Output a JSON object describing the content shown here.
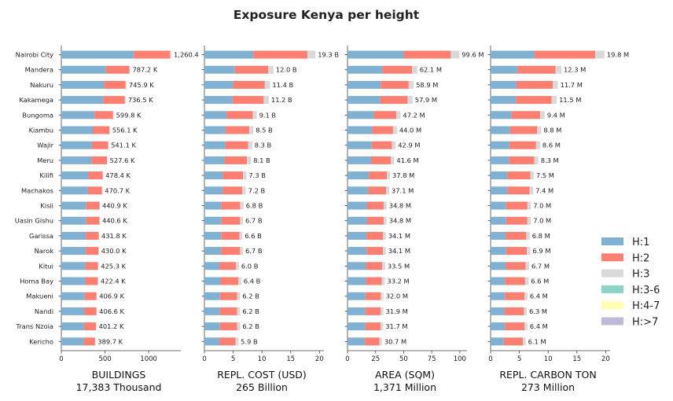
{
  "title": "Exposure Kenya per height",
  "colors": {
    "H:1": "#80b1d3",
    "H:2": "#fb8072",
    "H:3": "#d9d9d9",
    "H:3-6": "#8dd3c7",
    "H:4-7": "#ffffb3",
    "H:>7": "#bebada"
  },
  "chart_data": {
    "type": "bar",
    "orientation": "horizontal",
    "stacked": true,
    "categories": [
      "Nairobi City",
      "Mandera",
      "Nakuru",
      "Kakamega",
      "Bungoma",
      "Kiambu",
      "Wajir",
      "Meru",
      "Kilifi",
      "Machakos",
      "Kisii",
      "Uasin Gishu",
      "Garissa",
      "Narok",
      "Kitui",
      "Homa Bay",
      "Makueni",
      "Nandi",
      "Trans Nzoia",
      "Kericho"
    ],
    "legend": [
      "H:1",
      "H:2",
      "H:3",
      "H:3-6",
      "H:4-7",
      "H:>7"
    ],
    "legend_position": "right",
    "panels": [
      {
        "xlabel": "BUILDINGS",
        "xsub": "17,383 Thousand",
        "xlim": [
          0,
          1350
        ],
        "xticks": [
          0,
          500,
          1000
        ],
        "totals": [
          1260.4,
          787.2,
          745.9,
          736.5,
          599.8,
          556.1,
          541.1,
          527.6,
          478.4,
          470.7,
          440.9,
          440.6,
          431.8,
          430.0,
          425.3,
          422.4,
          406.9,
          406.6,
          401.2,
          389.7
        ],
        "labels": [
          "1,260.4",
          "787.2 K",
          "745.9 K",
          "736.5 K",
          "599.8 K",
          "556.1 K",
          "541.1 K",
          "527.6 K",
          "478.4 K",
          "470.7 K",
          "440.9 K",
          "440.6 K",
          "431.8 K",
          "430.0 K",
          "425.3 K",
          "422.4 K",
          "406.9 K",
          "406.6 K",
          "401.2 K",
          "389.7 K"
        ],
        "series": [
          {
            "name": "H:1",
            "values": [
              830,
              510,
              490,
              480,
              380,
              360,
              350,
              345,
              310,
              305,
              285,
              285,
              280,
              280,
              275,
              275,
              265,
              265,
              260,
              255
            ]
          },
          {
            "name": "H:2",
            "values": [
              415,
              268,
              246,
              247,
              212,
              190,
              185,
              178,
              164,
              161,
              152,
              152,
              148,
              146,
              146,
              143,
              138,
              138,
              137,
              131
            ]
          },
          {
            "name": "H:3",
            "values": [
              15,
              9,
              9,
              9,
              7,
              6,
              6,
              4,
              4,
              4,
              3,
              3,
              3,
              4,
              4,
              4,
              3,
              3,
              4,
              3
            ]
          }
        ]
      },
      {
        "xlabel": "REPL. COST (USD)",
        "xsub": "265 Billion",
        "xlim": [
          0,
          20.5
        ],
        "xticks": [
          0,
          5,
          10,
          15,
          20
        ],
        "totals": [
          19.3,
          12.0,
          11.4,
          11.2,
          9.1,
          8.5,
          8.3,
          8.1,
          7.3,
          7.2,
          6.8,
          6.7,
          6.6,
          6.7,
          6.0,
          6.4,
          6.2,
          6.2,
          6.2,
          5.9
        ],
        "labels": [
          "19.3 B",
          "12.0 B",
          "11.4 B",
          "11.2 B",
          "9.1 B",
          "8.5 B",
          "8.3 B",
          "8.1 B",
          "7.3 B",
          "7.2 B",
          "6.8 B",
          "6.7 B",
          "6.6 B",
          "6.7 B",
          "6.0 B",
          "6.4 B",
          "6.2 B",
          "6.2 B",
          "6.2 B",
          "5.9 B"
        ],
        "series": [
          {
            "name": "H:1",
            "values": [
              8.5,
              5.3,
              5.0,
              4.9,
              3.9,
              3.7,
              3.6,
              3.5,
              3.2,
              3.2,
              2.9,
              2.9,
              2.9,
              2.9,
              2.6,
              2.8,
              2.7,
              2.7,
              2.7,
              2.6
            ]
          },
          {
            "name": "H:2",
            "values": [
              9.4,
              5.8,
              5.5,
              5.4,
              4.5,
              4.1,
              4.0,
              3.9,
              3.5,
              3.4,
              3.3,
              3.3,
              3.2,
              3.3,
              2.9,
              3.1,
              3.0,
              3.0,
              3.0,
              2.8
            ]
          },
          {
            "name": "H:3",
            "values": [
              1.4,
              0.9,
              0.9,
              0.9,
              0.7,
              0.7,
              0.7,
              0.7,
              0.6,
              0.6,
              0.6,
              0.5,
              0.5,
              0.5,
              0.5,
              0.5,
              0.5,
              0.5,
              0.5,
              0.5
            ]
          }
        ]
      },
      {
        "xlabel": "AREA (SQM)",
        "xsub": "1,371 Million",
        "xlim": [
          0,
          105
        ],
        "xticks": [
          0,
          25,
          50,
          75,
          100
        ],
        "totals": [
          99.6,
          62.1,
          58.9,
          57.9,
          47.2,
          44.0,
          42.9,
          41.6,
          37.8,
          37.1,
          34.8,
          34.8,
          34.1,
          34.1,
          33.5,
          33.2,
          32.0,
          31.9,
          31.7,
          30.7
        ],
        "labels": [
          "99.6 M",
          "62.1 M",
          "58.9 M",
          "57.9 M",
          "47.2 M",
          "44.0 M",
          "42.9 M",
          "41.6 M",
          "37.8 M",
          "37.1 M",
          "34.8 M",
          "34.8 M",
          "34.1 M",
          "34.1 M",
          "33.5 M",
          "33.2 M",
          "32.0 M",
          "31.9 M",
          "31.7 M",
          "30.7 M"
        ],
        "series": [
          {
            "name": "H:1",
            "values": [
              50,
              31,
              29.5,
              29,
              23.5,
              22,
              21.5,
              21,
              19,
              18.5,
              17.5,
              17.5,
              17,
              17,
              16.5,
              16.5,
              16,
              16,
              16,
              15.5
            ]
          },
          {
            "name": "H:2",
            "values": [
              42,
              26.5,
              25,
              24.5,
              20,
              18.5,
              18,
              17.5,
              16,
              15.8,
              14.8,
              14.8,
              14.5,
              14.5,
              14.3,
              14.1,
              13.6,
              13.5,
              13.4,
              13
            ]
          },
          {
            "name": "H:3",
            "values": [
              7.6,
              4.6,
              4.4,
              4.4,
              3.7,
              3.5,
              3.4,
              3.1,
              2.8,
              2.8,
              2.5,
              2.5,
              2.6,
              2.6,
              2.7,
              2.6,
              2.4,
              2.4,
              2.3,
              2.2
            ]
          }
        ]
      },
      {
        "xlabel": "REPL. CARBON TON",
        "xsub": "273 Million",
        "xlim": [
          0,
          20.5
        ],
        "xticks": [
          0,
          5,
          10,
          15,
          20
        ],
        "totals": [
          19.8,
          12.3,
          11.7,
          11.5,
          9.4,
          8.8,
          8.6,
          8.3,
          7.5,
          7.4,
          7.0,
          7.0,
          6.8,
          6.9,
          6.7,
          6.6,
          6.4,
          6.3,
          6.4,
          6.1
        ],
        "labels": [
          "19.8 M",
          "12.3 M",
          "11.7 M",
          "11.5 M",
          "9.4 M",
          "8.8 M",
          "8.6 M",
          "8.3 M",
          "7.5 M",
          "7.4 M",
          "7.0 M",
          "7.0 M",
          "6.8 M",
          "6.9 M",
          "6.7 M",
          "6.6 M",
          "6.4 M",
          "6.3 M",
          "6.4 M",
          "6.1 M"
        ],
        "series": [
          {
            "name": "H:1",
            "values": [
              7.6,
              4.7,
              4.5,
              4.4,
              3.6,
              3.4,
              3.3,
              3.2,
              2.9,
              2.9,
              2.7,
              2.7,
              2.6,
              2.7,
              2.6,
              2.5,
              2.5,
              2.4,
              2.5,
              2.3
            ]
          },
          {
            "name": "H:2",
            "values": [
              10.6,
              6.6,
              6.3,
              6.2,
              5.0,
              4.7,
              4.6,
              4.4,
              4.0,
              3.9,
              3.7,
              3.7,
              3.6,
              3.6,
              3.5,
              3.5,
              3.4,
              3.4,
              3.4,
              3.3
            ]
          },
          {
            "name": "H:3",
            "values": [
              1.6,
              1.0,
              0.9,
              0.9,
              0.8,
              0.7,
              0.7,
              0.7,
              0.6,
              0.6,
              0.6,
              0.6,
              0.6,
              0.6,
              0.6,
              0.6,
              0.5,
              0.5,
              0.5,
              0.5
            ]
          }
        ]
      }
    ]
  }
}
